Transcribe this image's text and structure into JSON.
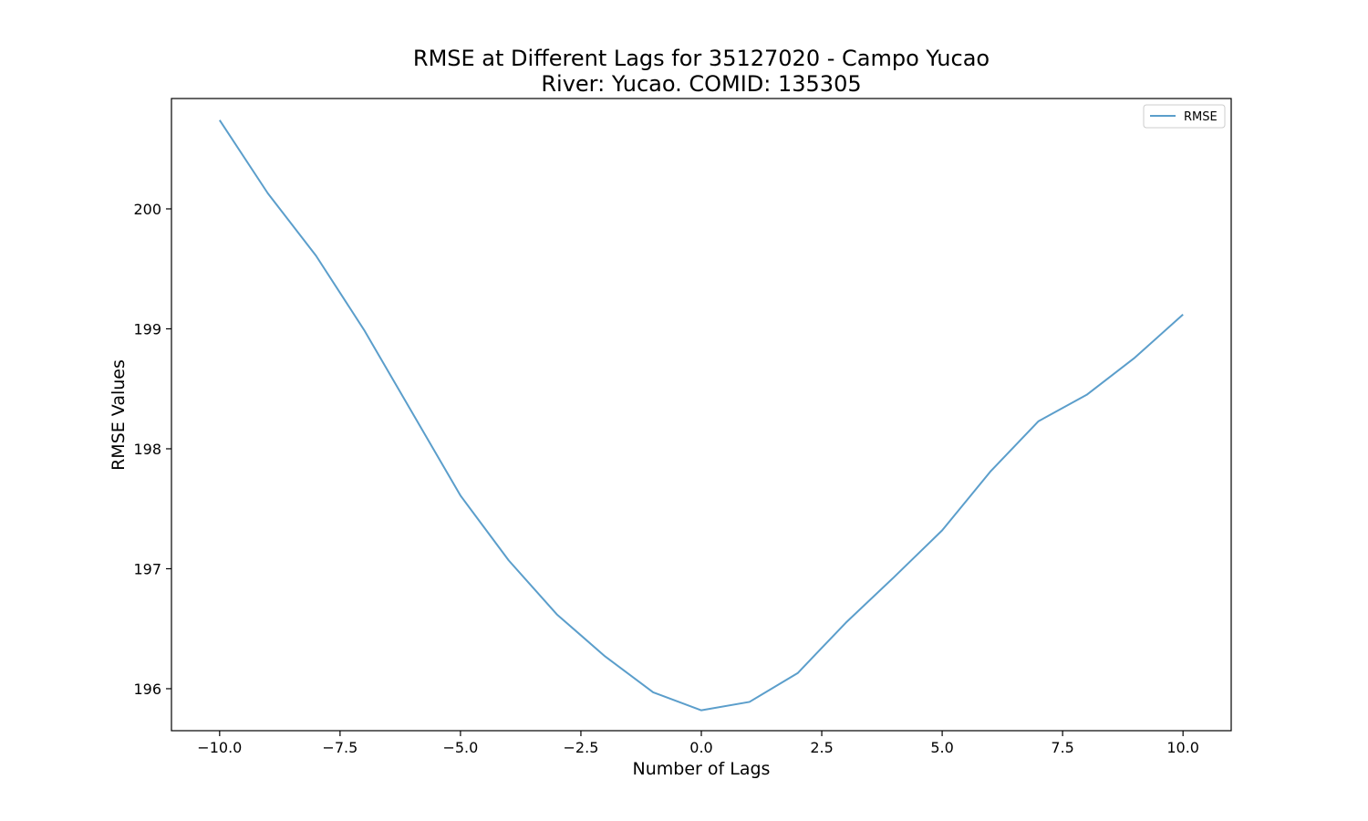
{
  "chart_data": {
    "type": "line",
    "title": "RMSE at Different Lags for 35127020 - Campo Yucao",
    "subtitle": "River: Yucao. COMID: 135305",
    "xlabel": "Number of Lags",
    "ylabel": "RMSE Values",
    "xlim": [
      -11,
      11
    ],
    "ylim": [
      195.65,
      200.92
    ],
    "x_ticks": [
      -10.0,
      -7.5,
      -5.0,
      -2.5,
      0.0,
      2.5,
      5.0,
      7.5,
      10.0
    ],
    "x_tick_labels": [
      "−10.0",
      "−7.5",
      "−5.0",
      "−2.5",
      "0.0",
      "2.5",
      "5.0",
      "7.5",
      "10.0"
    ],
    "y_ticks": [
      196,
      197,
      198,
      199,
      200
    ],
    "y_tick_labels": [
      "196",
      "197",
      "198",
      "199",
      "200"
    ],
    "grid": false,
    "legend_position": "top-right",
    "series": [
      {
        "name": "RMSE",
        "color": "#5b9ecb",
        "x": [
          -10,
          -9,
          -8,
          -7,
          -6,
          -5,
          -4,
          -3,
          -2,
          -1,
          0,
          1,
          2,
          3,
          4,
          5,
          6,
          7,
          8,
          9,
          10
        ],
        "y": [
          200.74,
          200.13,
          199.61,
          198.99,
          198.3,
          197.61,
          197.07,
          196.62,
          196.27,
          195.97,
          195.82,
          195.89,
          196.13,
          196.55,
          196.93,
          197.32,
          197.81,
          198.23,
          198.45,
          198.76,
          199.12
        ]
      }
    ]
  }
}
